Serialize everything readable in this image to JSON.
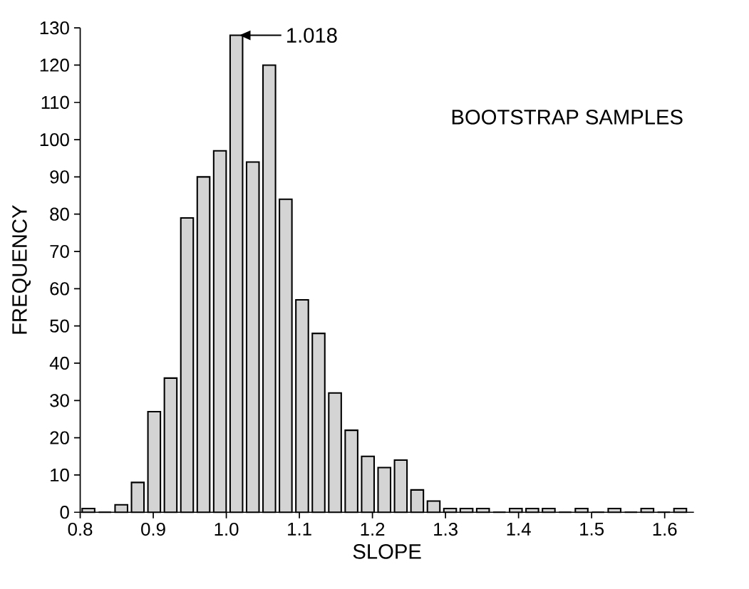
{
  "chart_data": {
    "type": "histogram",
    "xlabel": "SLOPE",
    "ylabel": "FREQUENCY",
    "bins": [
      0.8,
      0.8225,
      0.845,
      0.8675,
      0.89,
      0.9125,
      0.935,
      0.9575,
      0.98,
      1.0025,
      1.025,
      1.0475,
      1.07,
      1.0925,
      1.115,
      1.1375,
      1.16,
      1.1825,
      1.205,
      1.2275,
      1.25,
      1.2725,
      1.295,
      1.3175,
      1.34,
      1.3625,
      1.385,
      1.4075,
      1.43,
      1.4525,
      1.475,
      1.4975,
      1.52,
      1.5425,
      1.565,
      1.5875,
      1.61,
      1.6325
    ],
    "values": [
      1,
      0,
      2,
      8,
      27,
      36,
      79,
      90,
      97,
      128,
      94,
      120,
      84,
      57,
      48,
      32,
      22,
      15,
      12,
      14,
      6,
      3,
      1,
      1,
      1,
      0,
      1,
      1,
      1,
      0,
      1,
      0,
      1,
      0,
      1,
      0,
      1
    ],
    "color": "#d4d4d4",
    "xlim": [
      0.8,
      1.64
    ],
    "ylim": [
      0,
      130
    ],
    "xticks": [
      {
        "value": 0.8,
        "label": "0.8"
      },
      {
        "value": 0.9,
        "label": "0.9"
      },
      {
        "value": 1.0,
        "label": "1.0"
      },
      {
        "value": 1.1,
        "label": "1.1"
      },
      {
        "value": 1.2,
        "label": "1.2"
      },
      {
        "value": 1.3,
        "label": "1.3"
      },
      {
        "value": 1.4,
        "label": "1.4"
      },
      {
        "value": 1.5,
        "label": "1.5"
      },
      {
        "value": 1.6,
        "label": "1.6"
      }
    ],
    "yticks": [
      0,
      10,
      20,
      30,
      40,
      50,
      60,
      70,
      80,
      90,
      100,
      110,
      120,
      130
    ],
    "grid": false,
    "annotations": [
      {
        "text": "1.018",
        "x": 1.018,
        "y": 128
      },
      "BOOTSTRAP SAMPLES"
    ]
  }
}
